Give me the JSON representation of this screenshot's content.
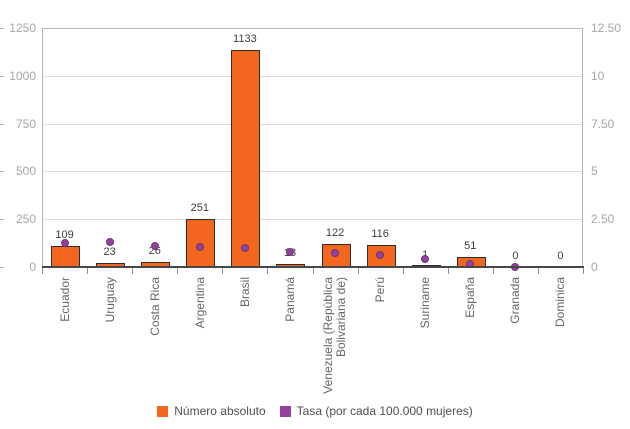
{
  "chart_data": {
    "type": "bar",
    "title": "",
    "categories": [
      "Ecuador",
      "Uruguay",
      "Costa Rica",
      "Argentina",
      "Brasil",
      "Panamá",
      "Venezuela (República Bolivariana de)",
      "Perú",
      "Suriname",
      "España",
      "Granada",
      "Dominica"
    ],
    "series": [
      {
        "name": "Número absoluto",
        "type": "bar",
        "axis": "left",
        "color": "#f3661e",
        "border_color": "#2d2d2d",
        "values": [
          109,
          23,
          26,
          251,
          1133,
          18,
          122,
          116,
          1,
          51,
          0,
          0
        ],
        "labels": [
          "109",
          "23",
          "26",
          "251",
          "1133",
          "18",
          "122",
          "116",
          "1",
          "51",
          "0",
          "0"
        ]
      },
      {
        "name": "Tasa (por cada 100.000 mujeres)",
        "type": "scatter",
        "axis": "right",
        "color": "#93429d",
        "border_color": "#6c3577",
        "values": [
          1.25,
          1.3,
          1.1,
          1.05,
          1.0,
          0.8,
          0.75,
          0.65,
          0.4,
          0.15,
          0,
          null
        ]
      }
    ],
    "left_axis": {
      "min": 0,
      "max": 1250,
      "ticks": [
        "0",
        "250",
        "500",
        "750",
        "1000",
        "1250"
      ]
    },
    "right_axis": {
      "min": 0,
      "max": 12.5,
      "ticks": [
        "0",
        "2.50",
        "5",
        "7.50",
        "10",
        "12.50"
      ]
    },
    "grid": true,
    "legend_position": "bottom"
  }
}
